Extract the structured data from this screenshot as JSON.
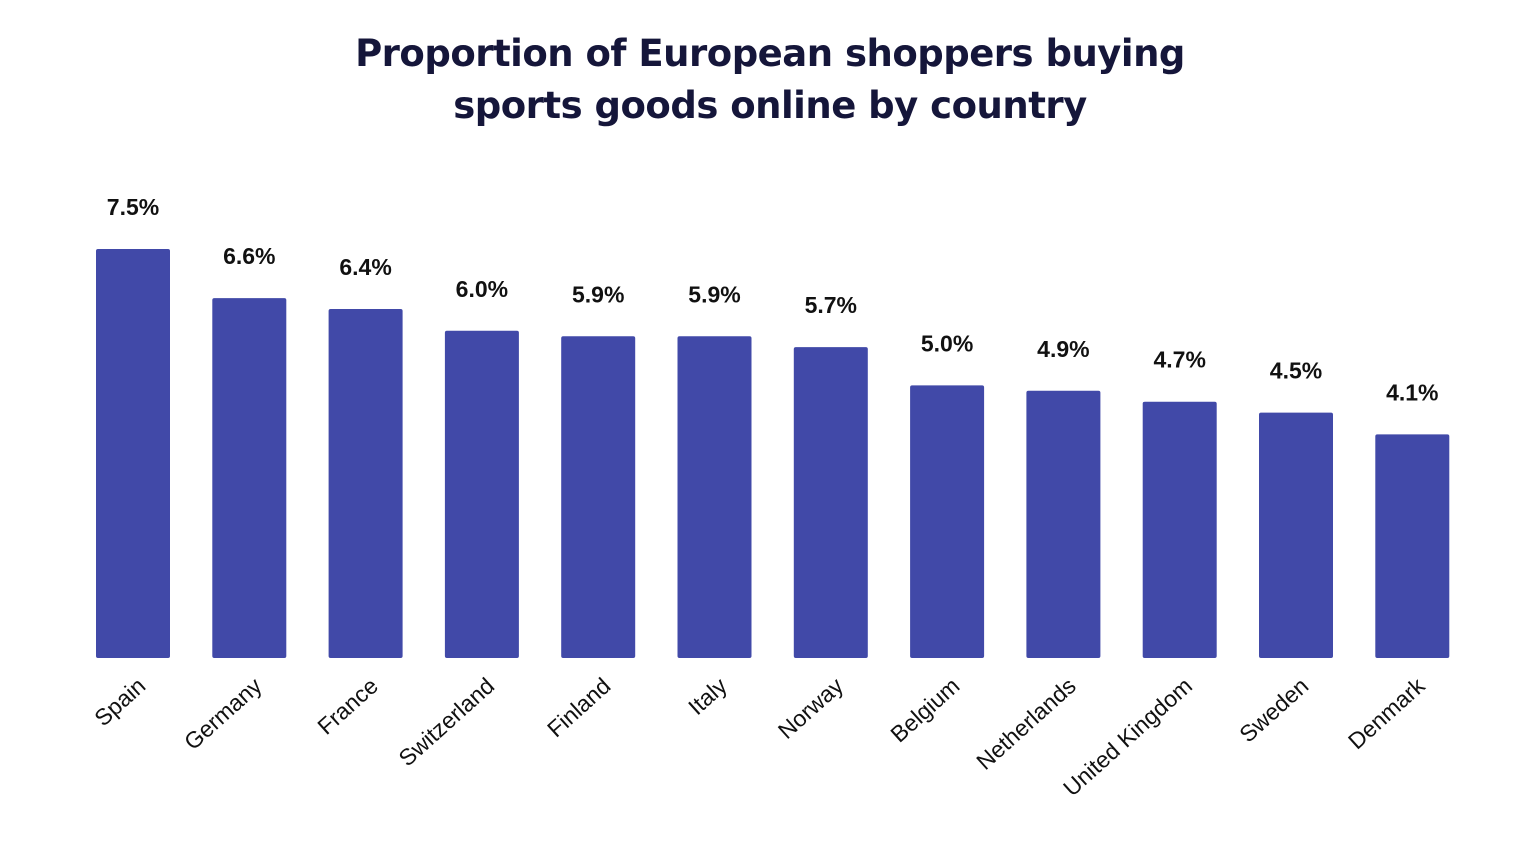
{
  "chart_data": {
    "type": "bar",
    "title": "Proportion of European shoppers buying sports goods online by country",
    "title_lines": [
      "Proportion of European shoppers buying",
      "sports goods online by country"
    ],
    "categories": [
      "Spain",
      "Germany",
      "France",
      "Switzerland",
      "Finland",
      "Italy",
      "Norway",
      "Belgium",
      "Netherlands",
      "United Kingdom",
      "Sweden",
      "Denmark"
    ],
    "values": [
      7.5,
      6.6,
      6.4,
      6.0,
      5.9,
      5.9,
      5.7,
      5.0,
      4.9,
      4.7,
      4.5,
      4.1
    ],
    "value_labels": [
      "7.5%",
      "6.6%",
      "6.4%",
      "6.0%",
      "5.9%",
      "5.9%",
      "5.7%",
      "5.0%",
      "4.9%",
      "4.7%",
      "4.5%",
      "4.1%"
    ],
    "xlabel": "",
    "ylabel": "",
    "ylim": [
      0,
      7.5
    ],
    "grid": false,
    "bar_color": "#4149A8",
    "title_color": "#15163a"
  }
}
